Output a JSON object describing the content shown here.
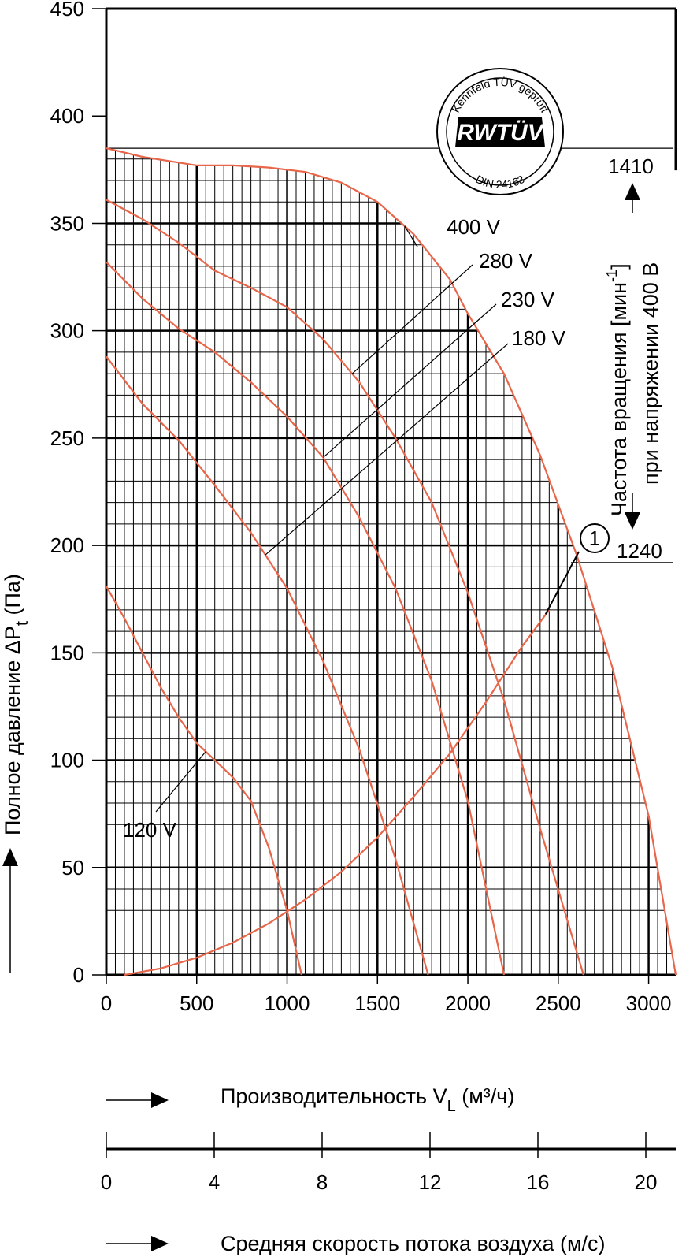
{
  "chart_data": {
    "type": "line",
    "xlabel_prefix": "Производительность V",
    "xlabel_sub": "L",
    "xlabel_suffix": " (м³/ч)",
    "ylabel_prefix": "Полное давление ΔP",
    "ylabel_sub": "t",
    "ylabel_suffix": " (Па)",
    "xlim": [
      0,
      3150
    ],
    "ylim": [
      0,
      450
    ],
    "x_ticks": [
      "0",
      "500",
      "1000",
      "1500",
      "2000",
      "2500",
      "3000"
    ],
    "y_ticks": [
      "0",
      "50",
      "100",
      "150",
      "200",
      "250",
      "300",
      "350",
      "400",
      "450"
    ],
    "grid": true,
    "velocity_axis": {
      "label": "Средняя скорость потока воздуха (м/с)",
      "ticks": [
        "0",
        "4",
        "8",
        "12",
        "16",
        "20"
      ]
    },
    "speed_axis": {
      "label_line1": "Частота вращения [мин",
      "label_line1_sup": "-1",
      "label_line1_end": "]",
      "label_line2": "при напряжении 400 В",
      "top_value": "1410",
      "bottom_value": "1240"
    },
    "logo": {
      "text_top": "Kennfeld TÜV geprüft",
      "text_center": "RWTÜV",
      "text_bottom": "DIN 24163"
    },
    "series": [
      {
        "name": "400 V",
        "x": [
          0,
          200,
          350,
          500,
          700,
          900,
          1100,
          1300,
          1500,
          1700,
          1900,
          2000,
          2200,
          2400,
          2600,
          2800,
          3000,
          3150
        ],
        "y": [
          385,
          381,
          379,
          377,
          377,
          376,
          374,
          369,
          360,
          345,
          324,
          308,
          280,
          242,
          196,
          143,
          74,
          0
        ]
      },
      {
        "name": "280 V",
        "x": [
          0,
          200,
          400,
          600,
          800,
          1000,
          1200,
          1400,
          1600,
          1800,
          2000,
          2200,
          2400,
          2640
        ],
        "y": [
          361,
          352,
          341,
          328,
          320,
          311,
          296,
          276,
          250,
          220,
          178,
          128,
          68,
          0
        ]
      },
      {
        "name": "230 V",
        "x": [
          0,
          200,
          400,
          600,
          800,
          1000,
          1200,
          1400,
          1600,
          1800,
          2000,
          2200
        ],
        "y": [
          332,
          315,
          301,
          290,
          276,
          260,
          241,
          213,
          180,
          137,
          81,
          0
        ]
      },
      {
        "name": "180 V",
        "x": [
          0,
          200,
          400,
          600,
          800,
          1000,
          1200,
          1400,
          1600,
          1780
        ],
        "y": [
          288,
          266,
          249,
          228,
          206,
          180,
          146,
          105,
          54,
          0
        ]
      },
      {
        "name": "120 V",
        "x": [
          0,
          100,
          200,
          300,
          400,
          500,
          600,
          700,
          800,
          900,
          1000,
          1080
        ],
        "y": [
          181,
          166,
          150,
          134,
          120,
          108,
          100,
          92,
          81,
          59,
          30,
          0
        ]
      }
    ],
    "system_curve": {
      "name": "1",
      "x": [
        100,
        300,
        500,
        700,
        900,
        1100,
        1300,
        1500,
        1700,
        1900,
        2100,
        2300,
        2450
      ],
      "y": [
        0,
        3,
        8,
        15,
        24,
        35,
        48,
        64,
        83,
        103,
        127,
        153,
        170
      ]
    },
    "speed_line_1410_pressure": 385,
    "speed_line_1240_pressure": 192
  }
}
